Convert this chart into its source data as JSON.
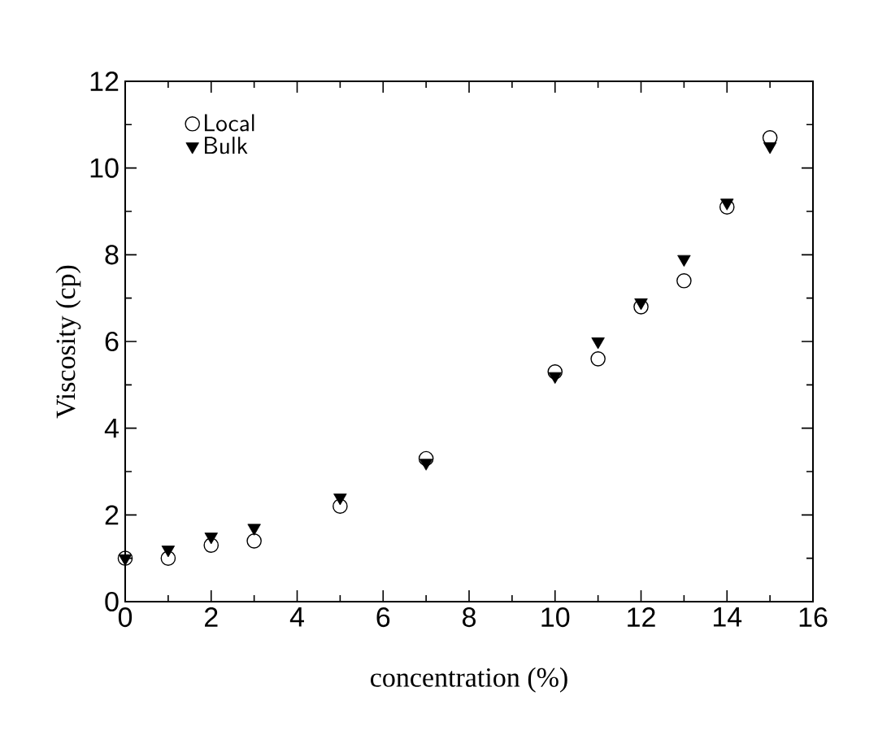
{
  "chart_data": {
    "type": "scatter",
    "xlabel": "concentration (%)",
    "ylabel": "Viscosity (cp)",
    "x": [
      0,
      1,
      2,
      3,
      5,
      7,
      10,
      11,
      12,
      13,
      14,
      15
    ],
    "series": [
      {
        "name": "Local",
        "color": "#000000",
        "marker": "circle",
        "values": [
          1.0,
          1.0,
          1.3,
          1.4,
          2.2,
          3.3,
          5.3,
          5.6,
          6.8,
          7.4,
          9.1,
          10.7
        ]
      },
      {
        "name": "Bulk",
        "color": "#000000",
        "marker": "triangle",
        "values": [
          1.0,
          1.2,
          1.5,
          1.7,
          2.4,
          3.2,
          5.2,
          6.0,
          6.9,
          7.9,
          9.2,
          10.5
        ]
      }
    ],
    "xlim": [
      0,
      16
    ],
    "ylim": [
      0,
      12
    ],
    "xticks": [
      0,
      2,
      4,
      6,
      8,
      10,
      12,
      14,
      16
    ],
    "yticks": [
      0,
      2,
      4,
      6,
      8,
      10,
      12
    ],
    "grid": false,
    "legend": "top left"
  }
}
